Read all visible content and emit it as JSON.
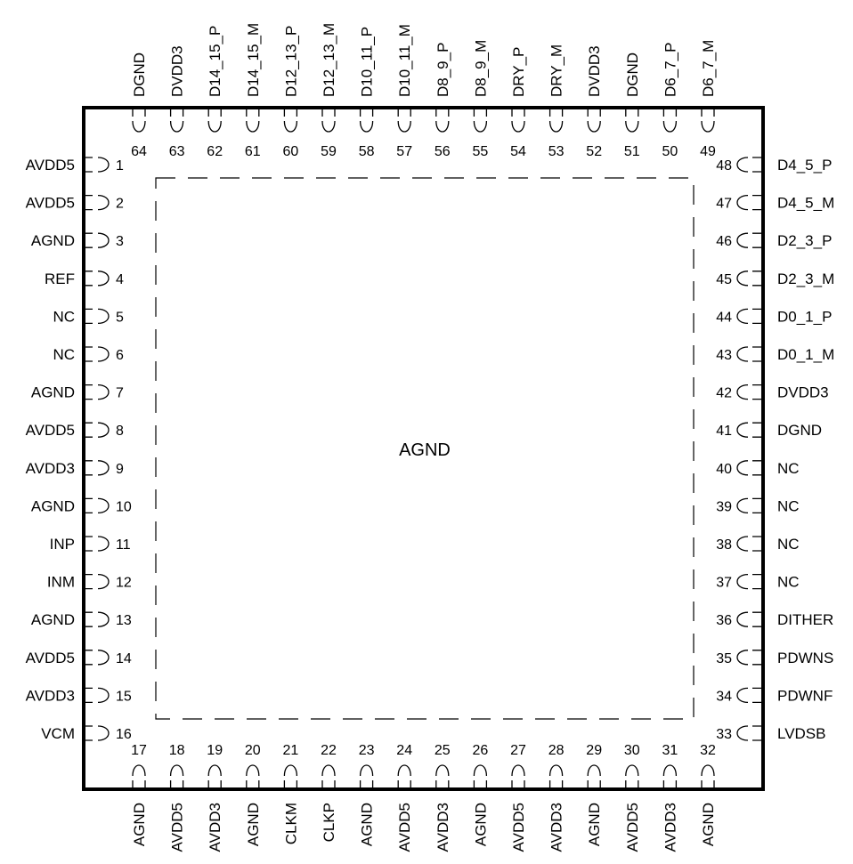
{
  "package": {
    "center_label": "AGND",
    "line_color": "#000000",
    "background": "#ffffff"
  },
  "pins": {
    "left": [
      {
        "num": "1",
        "name": "AVDD5"
      },
      {
        "num": "2",
        "name": "AVDD5"
      },
      {
        "num": "3",
        "name": "AGND"
      },
      {
        "num": "4",
        "name": "REF"
      },
      {
        "num": "5",
        "name": "NC"
      },
      {
        "num": "6",
        "name": "NC"
      },
      {
        "num": "7",
        "name": "AGND"
      },
      {
        "num": "8",
        "name": "AVDD5"
      },
      {
        "num": "9",
        "name": "AVDD3"
      },
      {
        "num": "10",
        "name": "AGND"
      },
      {
        "num": "11",
        "name": "INP"
      },
      {
        "num": "12",
        "name": "INM"
      },
      {
        "num": "13",
        "name": "AGND"
      },
      {
        "num": "14",
        "name": "AVDD5"
      },
      {
        "num": "15",
        "name": "AVDD3"
      },
      {
        "num": "16",
        "name": "VCM"
      }
    ],
    "bottom": [
      {
        "num": "17",
        "name": "AGND"
      },
      {
        "num": "18",
        "name": "AVDD5"
      },
      {
        "num": "19",
        "name": "AVDD3"
      },
      {
        "num": "20",
        "name": "AGND"
      },
      {
        "num": "21",
        "name": "CLKM"
      },
      {
        "num": "22",
        "name": "CLKP"
      },
      {
        "num": "23",
        "name": "AGND"
      },
      {
        "num": "24",
        "name": "AVDD5"
      },
      {
        "num": "25",
        "name": "AVDD3"
      },
      {
        "num": "26",
        "name": "AGND"
      },
      {
        "num": "27",
        "name": "AVDD5"
      },
      {
        "num": "28",
        "name": "AVDD3"
      },
      {
        "num": "29",
        "name": "AGND"
      },
      {
        "num": "30",
        "name": "AVDD5"
      },
      {
        "num": "31",
        "name": "AVDD3"
      },
      {
        "num": "32",
        "name": "AGND"
      }
    ],
    "right": [
      {
        "num": "48",
        "name": "D4_5_P"
      },
      {
        "num": "47",
        "name": "D4_5_M"
      },
      {
        "num": "46",
        "name": "D2_3_P"
      },
      {
        "num": "45",
        "name": "D2_3_M"
      },
      {
        "num": "44",
        "name": "D0_1_P"
      },
      {
        "num": "43",
        "name": "D0_1_M"
      },
      {
        "num": "42",
        "name": "DVDD3"
      },
      {
        "num": "41",
        "name": "DGND"
      },
      {
        "num": "40",
        "name": "NC"
      },
      {
        "num": "39",
        "name": "NC"
      },
      {
        "num": "38",
        "name": "NC"
      },
      {
        "num": "37",
        "name": "NC"
      },
      {
        "num": "36",
        "name": "DITHER"
      },
      {
        "num": "35",
        "name": "PDWNS"
      },
      {
        "num": "34",
        "name": "PDWNF"
      },
      {
        "num": "33",
        "name": "LVDSB"
      }
    ],
    "top": [
      {
        "num": "64",
        "name": "DGND"
      },
      {
        "num": "63",
        "name": "DVDD3"
      },
      {
        "num": "62",
        "name": "D14_15_P"
      },
      {
        "num": "61",
        "name": "D14_15_M"
      },
      {
        "num": "60",
        "name": "D12_13_P"
      },
      {
        "num": "59",
        "name": "D12_13_M"
      },
      {
        "num": "58",
        "name": "D10_11_P"
      },
      {
        "num": "57",
        "name": "D10_11_M"
      },
      {
        "num": "56",
        "name": "D8_9_P"
      },
      {
        "num": "55",
        "name": "D8_9_M"
      },
      {
        "num": "54",
        "name": "DRY_P"
      },
      {
        "num": "53",
        "name": "DRY_M"
      },
      {
        "num": "52",
        "name": "DVDD3"
      },
      {
        "num": "51",
        "name": "DGND"
      },
      {
        "num": "50",
        "name": "D6_7_P"
      },
      {
        "num": "49",
        "name": "D6_7_M"
      }
    ]
  }
}
